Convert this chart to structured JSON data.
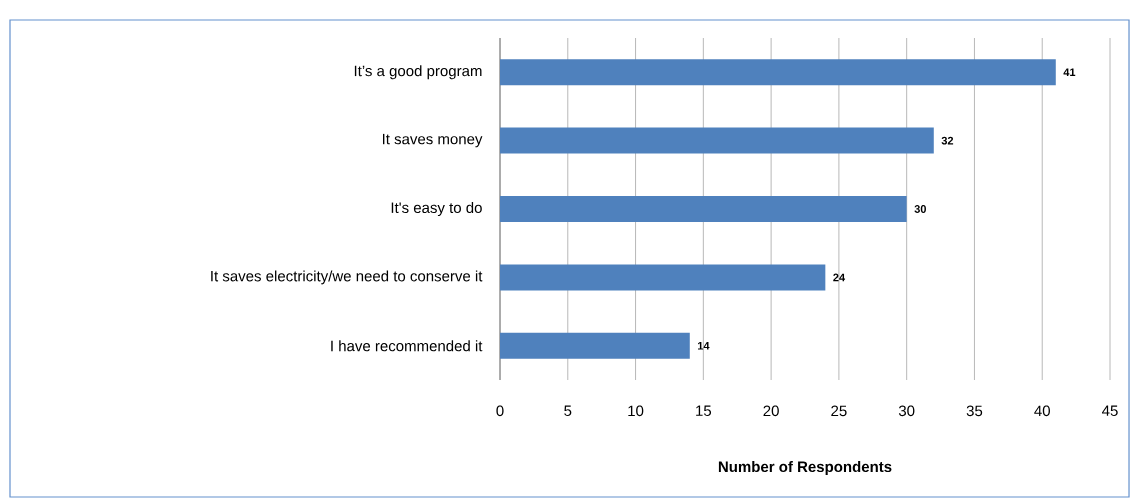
{
  "chart_data": {
    "type": "bar",
    "orientation": "horizontal",
    "categories": [
      "It’s a good program",
      "It saves money",
      "It's easy to do",
      "It saves electricity/we need to conserve it",
      "I have recommended it"
    ],
    "values": [
      41,
      32,
      30,
      24,
      14
    ],
    "color": "#4f81bd",
    "xlabel": "Number of Respondents",
    "xlim": [
      0,
      45
    ],
    "xticks": [
      0,
      5,
      10,
      15,
      20,
      25,
      30,
      35,
      40,
      45
    ],
    "grid": "x",
    "data_labels": true
  }
}
